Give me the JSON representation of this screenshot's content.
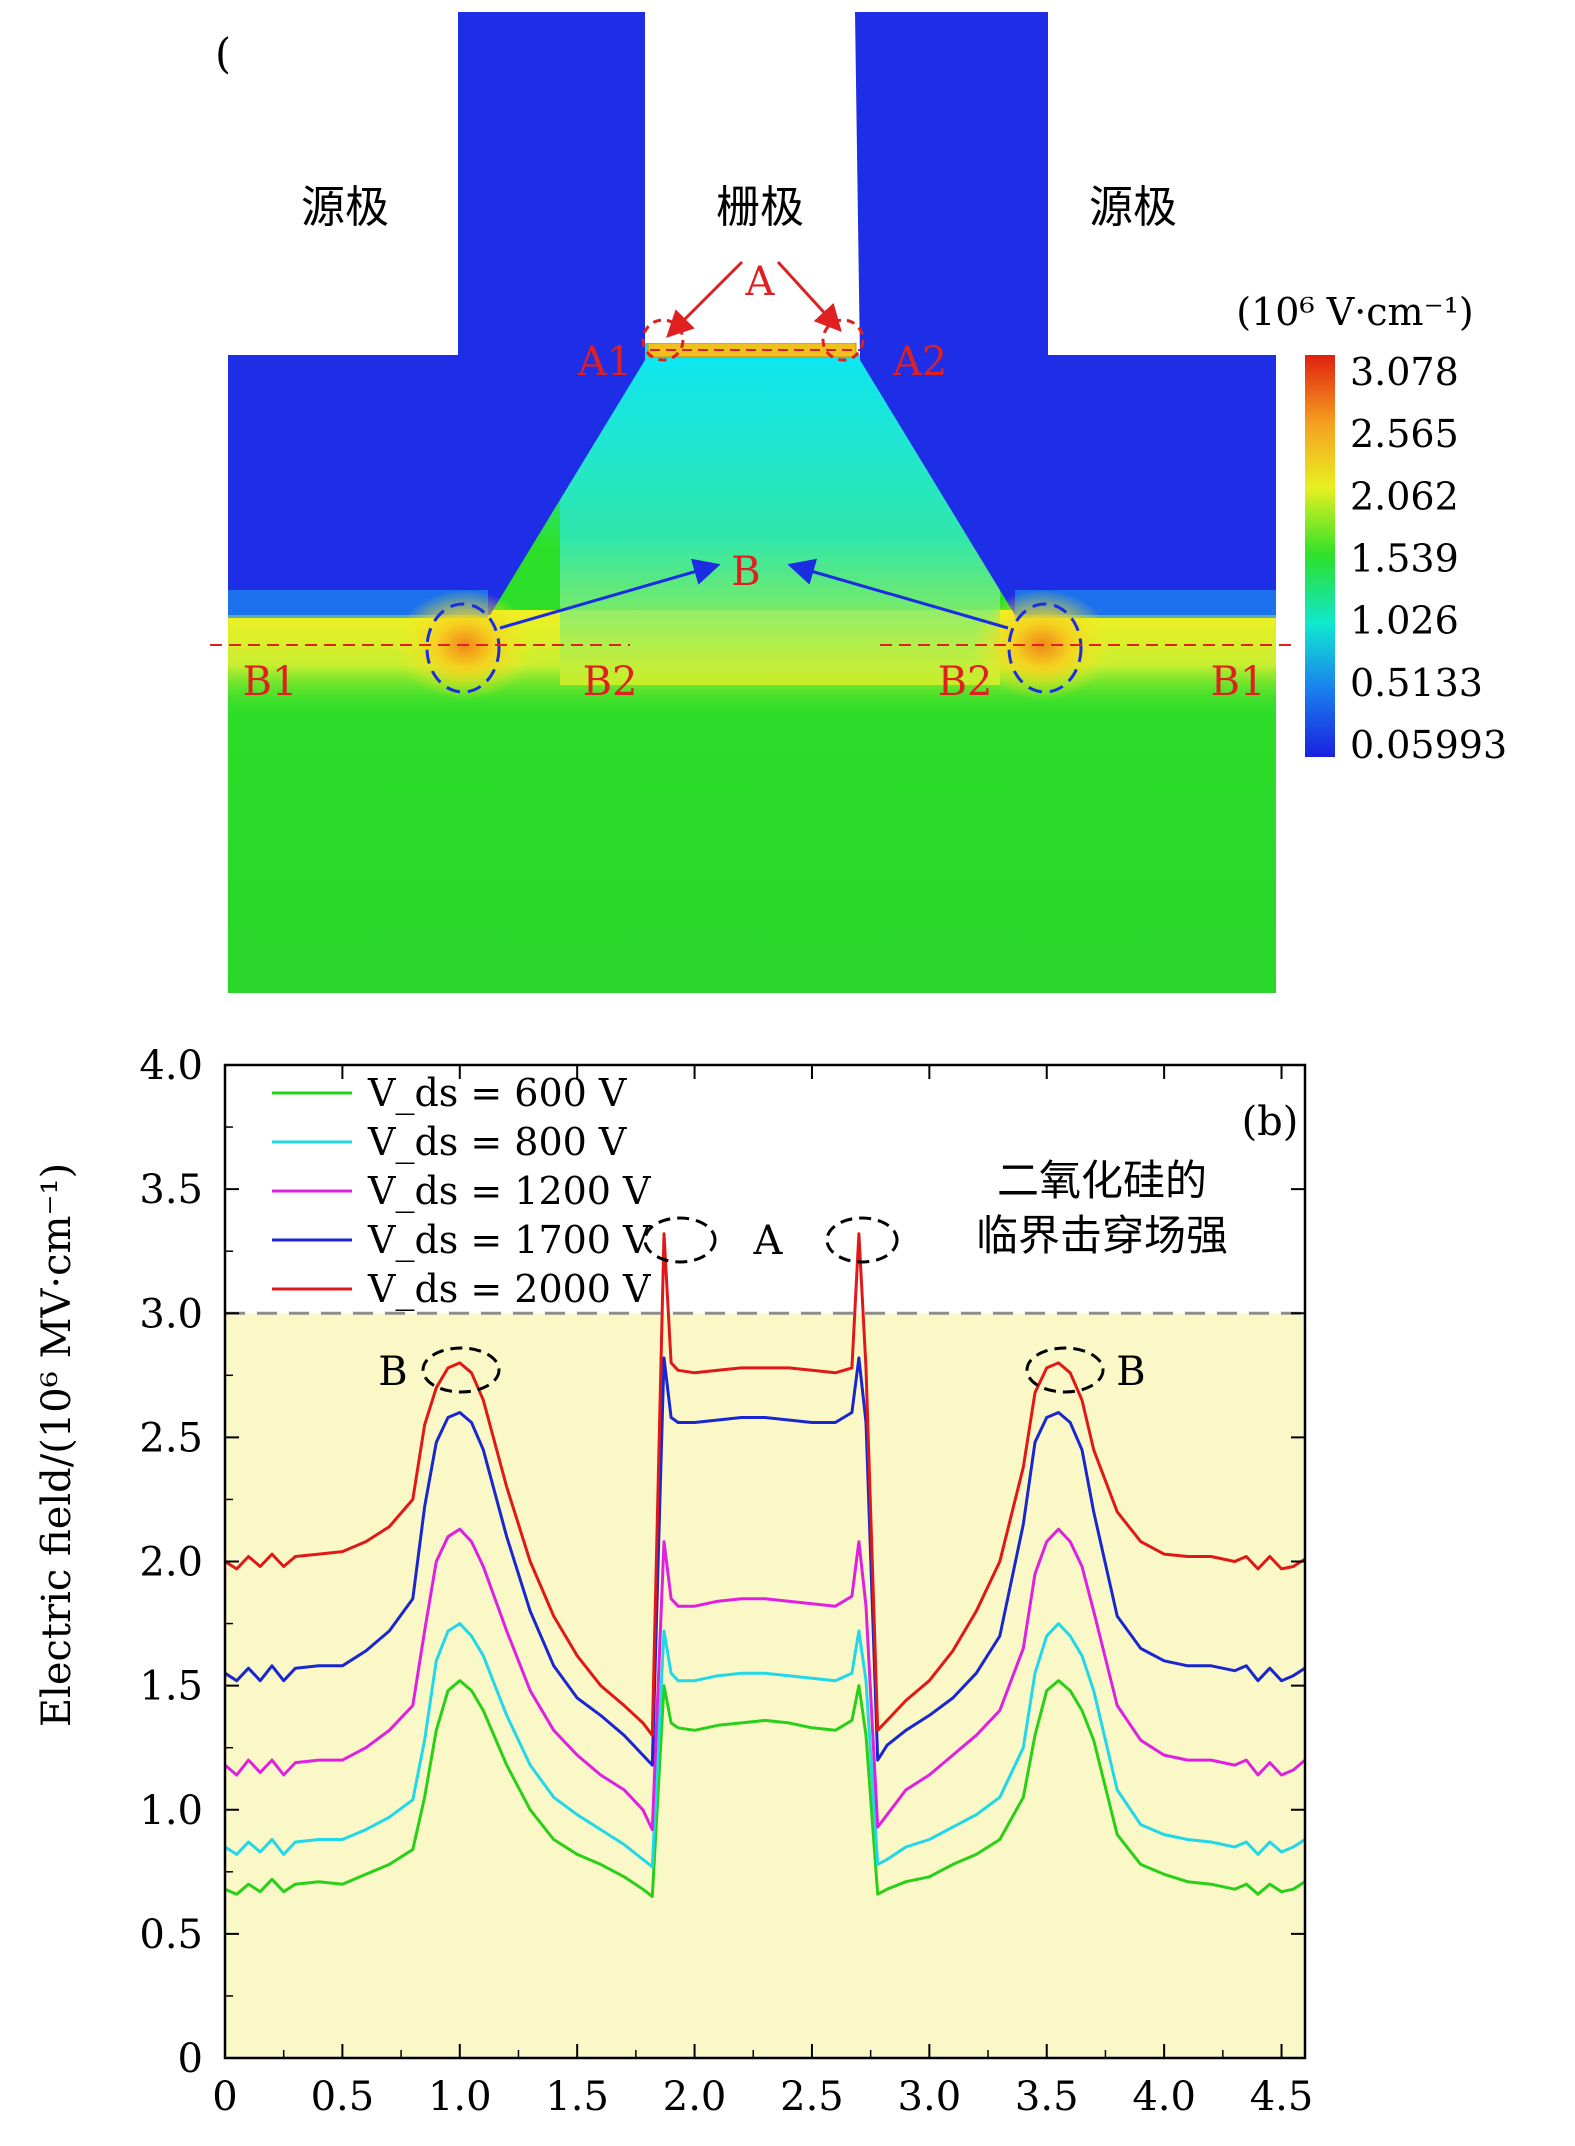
{
  "panel_a": {
    "label": "(a)",
    "region_labels": {
      "source_left": "源极",
      "gate": "栅极",
      "source_right": "源极"
    },
    "markers": {
      "A": "A",
      "A1": "A1",
      "A2": "A2",
      "B": "B",
      "B1_left": "B1",
      "B2_left": "B2",
      "B2_right": "B2",
      "B1_right": "B1"
    },
    "colorbar": {
      "title": "(10⁶ V·cm⁻¹)",
      "ticks": [
        "3.078",
        "2.565",
        "2.062",
        "1.539",
        "1.026",
        "0.5133",
        "0.05993"
      ]
    },
    "colors": {
      "low": "#1e2ee6",
      "cyan": "#0ee6f0",
      "green": "#2ce02a",
      "yellow": "#f5f020",
      "red": "#e02010",
      "marker_red": "#e02020",
      "marker_blue": "#1a2de0"
    }
  },
  "chart_data": {
    "type": "line",
    "panel_label": "(b)",
    "xlabel": "",
    "ylabel": "Electric field/(10⁶ MV·cm⁻¹)",
    "xlim": [
      0,
      4.6
    ],
    "ylim": [
      0,
      4.0
    ],
    "xticks": [
      "0",
      "0.5",
      "1.0",
      "1.5",
      "2.0",
      "2.5",
      "3.0",
      "3.5",
      "4.0",
      "4.5"
    ],
    "yticks": [
      "0",
      "0.5",
      "1.0",
      "1.5",
      "2.0",
      "2.5",
      "3.0",
      "3.5",
      "4.0"
    ],
    "reference_line": {
      "y": 3.0,
      "color": "#8c8c8c"
    },
    "critical_region_fill": "#fbf8c8",
    "annotation": {
      "line1": "二氧化硅的",
      "line2": "临界击穿场强"
    },
    "markers": {
      "A": "A",
      "B_left": "B",
      "B_right": "B"
    },
    "x": [
      0,
      0.05,
      0.1,
      0.15,
      0.2,
      0.25,
      0.3,
      0.4,
      0.5,
      0.6,
      0.7,
      0.8,
      0.85,
      0.9,
      0.95,
      1.0,
      1.05,
      1.1,
      1.2,
      1.3,
      1.4,
      1.5,
      1.6,
      1.7,
      1.78,
      1.82,
      1.87,
      1.9,
      1.93,
      2.0,
      2.1,
      2.2,
      2.3,
      2.4,
      2.5,
      2.6,
      2.67,
      2.7,
      2.73,
      2.78,
      2.82,
      2.9,
      3.0,
      3.1,
      3.2,
      3.3,
      3.4,
      3.45,
      3.5,
      3.55,
      3.6,
      3.65,
      3.7,
      3.8,
      3.9,
      4.0,
      4.1,
      4.2,
      4.3,
      4.35,
      4.4,
      4.45,
      4.5,
      4.55,
      4.6
    ],
    "series": [
      {
        "name": "V_ds = 600 V",
        "color": "#28d018",
        "values": [
          0.68,
          0.66,
          0.7,
          0.67,
          0.72,
          0.67,
          0.7,
          0.71,
          0.7,
          0.74,
          0.78,
          0.84,
          1.05,
          1.32,
          1.48,
          1.52,
          1.48,
          1.4,
          1.18,
          1.0,
          0.88,
          0.82,
          0.78,
          0.73,
          0.68,
          0.65,
          1.5,
          1.35,
          1.33,
          1.32,
          1.34,
          1.35,
          1.36,
          1.35,
          1.33,
          1.32,
          1.36,
          1.5,
          1.3,
          0.66,
          0.68,
          0.71,
          0.73,
          0.78,
          0.82,
          0.88,
          1.05,
          1.3,
          1.48,
          1.52,
          1.48,
          1.4,
          1.28,
          0.9,
          0.78,
          0.74,
          0.71,
          0.7,
          0.68,
          0.7,
          0.66,
          0.7,
          0.67,
          0.68,
          0.71
        ]
      },
      {
        "name": "V_ds = 800 V",
        "color": "#20d8e8",
        "values": [
          0.85,
          0.82,
          0.87,
          0.83,
          0.88,
          0.82,
          0.87,
          0.88,
          0.88,
          0.92,
          0.97,
          1.04,
          1.28,
          1.6,
          1.72,
          1.75,
          1.7,
          1.62,
          1.38,
          1.18,
          1.05,
          0.98,
          0.92,
          0.86,
          0.8,
          0.77,
          1.72,
          1.55,
          1.52,
          1.52,
          1.54,
          1.55,
          1.55,
          1.54,
          1.53,
          1.52,
          1.55,
          1.72,
          1.52,
          0.78,
          0.8,
          0.85,
          0.88,
          0.93,
          0.98,
          1.05,
          1.25,
          1.55,
          1.7,
          1.75,
          1.7,
          1.62,
          1.48,
          1.08,
          0.94,
          0.9,
          0.88,
          0.87,
          0.85,
          0.87,
          0.82,
          0.87,
          0.83,
          0.85,
          0.88
        ]
      },
      {
        "name": "V_ds = 1200 V",
        "color": "#e020e0",
        "values": [
          1.18,
          1.14,
          1.2,
          1.15,
          1.2,
          1.14,
          1.19,
          1.2,
          1.2,
          1.25,
          1.32,
          1.42,
          1.72,
          2.0,
          2.1,
          2.13,
          2.08,
          1.98,
          1.72,
          1.48,
          1.32,
          1.22,
          1.14,
          1.08,
          1.0,
          0.92,
          2.08,
          1.85,
          1.82,
          1.82,
          1.84,
          1.85,
          1.85,
          1.84,
          1.83,
          1.82,
          1.86,
          2.08,
          1.82,
          0.93,
          0.98,
          1.08,
          1.14,
          1.22,
          1.3,
          1.4,
          1.65,
          1.95,
          2.08,
          2.13,
          2.08,
          1.98,
          1.8,
          1.42,
          1.28,
          1.22,
          1.2,
          1.2,
          1.18,
          1.2,
          1.14,
          1.19,
          1.14,
          1.16,
          1.2
        ]
      },
      {
        "name": "V_ds = 1700 V",
        "color": "#1a26d0",
        "values": [
          1.55,
          1.52,
          1.57,
          1.52,
          1.58,
          1.52,
          1.57,
          1.58,
          1.58,
          1.64,
          1.72,
          1.85,
          2.22,
          2.48,
          2.58,
          2.6,
          2.56,
          2.45,
          2.1,
          1.8,
          1.58,
          1.45,
          1.38,
          1.3,
          1.22,
          1.18,
          2.82,
          2.58,
          2.56,
          2.56,
          2.57,
          2.58,
          2.58,
          2.57,
          2.56,
          2.56,
          2.6,
          2.82,
          2.56,
          1.2,
          1.26,
          1.32,
          1.38,
          1.45,
          1.55,
          1.7,
          2.15,
          2.48,
          2.58,
          2.6,
          2.56,
          2.45,
          2.2,
          1.78,
          1.65,
          1.6,
          1.58,
          1.58,
          1.56,
          1.58,
          1.52,
          1.57,
          1.52,
          1.54,
          1.57
        ]
      },
      {
        "name": "V_ds = 2000 V",
        "color": "#e01818",
        "values": [
          2.0,
          1.97,
          2.02,
          1.98,
          2.03,
          1.98,
          2.02,
          2.03,
          2.04,
          2.08,
          2.14,
          2.25,
          2.55,
          2.7,
          2.78,
          2.8,
          2.76,
          2.65,
          2.3,
          2.0,
          1.78,
          1.62,
          1.5,
          1.42,
          1.35,
          1.3,
          3.32,
          2.8,
          2.77,
          2.76,
          2.77,
          2.78,
          2.78,
          2.78,
          2.77,
          2.76,
          2.78,
          3.32,
          2.78,
          1.32,
          1.36,
          1.44,
          1.52,
          1.64,
          1.8,
          2.0,
          2.38,
          2.68,
          2.78,
          2.8,
          2.76,
          2.65,
          2.45,
          2.2,
          2.08,
          2.03,
          2.02,
          2.02,
          2.0,
          2.02,
          1.97,
          2.02,
          1.97,
          1.98,
          2.01
        ]
      }
    ]
  }
}
